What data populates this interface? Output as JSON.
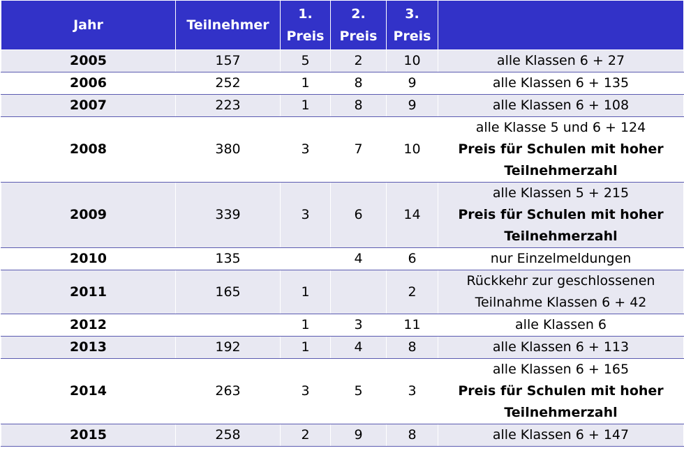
{
  "headers": {
    "year": "Jahr",
    "participants": "Teilnehmer",
    "prize1": [
      "1.",
      "Preis"
    ],
    "prize2": [
      "2.",
      "Preis"
    ],
    "prize3": [
      "3.",
      "Preis"
    ],
    "note": ""
  },
  "rows": [
    {
      "year": "2005",
      "participants": "157",
      "p1": "5",
      "p2": "2",
      "p3": "10",
      "note": [
        "alle Klassen 6 + 27"
      ],
      "note_bold": []
    },
    {
      "year": "2006",
      "participants": "252",
      "p1": "1",
      "p2": "8",
      "p3": "9",
      "note": [
        "alle Klassen 6 + 135"
      ],
      "note_bold": []
    },
    {
      "year": "2007",
      "participants": "223",
      "p1": "1",
      "p2": "8",
      "p3": "9",
      "note": [
        "alle Klassen 6 + 108"
      ],
      "note_bold": []
    },
    {
      "year": "2008",
      "participants": "380",
      "p1": "3",
      "p2": "7",
      "p3": "10",
      "note": [
        "alle Klasse 5 und 6 + 124"
      ],
      "note_bold": [
        "Preis für Schulen mit hoher",
        "Teilnehmerzahl"
      ]
    },
    {
      "year": "2009",
      "participants": "339",
      "p1": "3",
      "p2": "6",
      "p3": "14",
      "note": [
        "alle Klassen 5 + 215"
      ],
      "note_bold": [
        "Preis für Schulen mit hoher",
        "Teilnehmerzahl"
      ]
    },
    {
      "year": "2010",
      "participants": "135",
      "p1": "",
      "p2": "4",
      "p3": "6",
      "note": [
        "nur Einzelmeldungen"
      ],
      "note_bold": []
    },
    {
      "year": "2011",
      "participants": "165",
      "p1": "1",
      "p2": "",
      "p3": "2",
      "note": [
        "Rückkehr zur geschlossenen",
        "Teilnahme Klassen 6 + 42"
      ],
      "note_bold": []
    },
    {
      "year": "2012",
      "participants": "",
      "p1": "1",
      "p2": "3",
      "p3": "11",
      "note": [
        "alle Klassen 6"
      ],
      "note_bold": []
    },
    {
      "year": "2013",
      "participants": "192",
      "p1": "1",
      "p2": "4",
      "p3": "8",
      "note": [
        "alle Klassen 6 + 113"
      ],
      "note_bold": []
    },
    {
      "year": "2014",
      "participants": "263",
      "p1": "3",
      "p2": "5",
      "p3": "3",
      "note": [
        "alle Klassen 6 + 165"
      ],
      "note_bold": [
        "Preis für Schulen mit hoher",
        "Teilnehmerzahl"
      ]
    },
    {
      "year": "2015",
      "participants": "258",
      "p1": "2",
      "p2": "9",
      "p3": "8",
      "note": [
        "alle Klassen 6 + 147"
      ],
      "note_bold": []
    }
  ],
  "colors": {
    "header_bg": "#3232c8",
    "header_text": "#ffffff",
    "row_alt_bg": "#e8e8f2",
    "row_bg": "#ffffff"
  }
}
